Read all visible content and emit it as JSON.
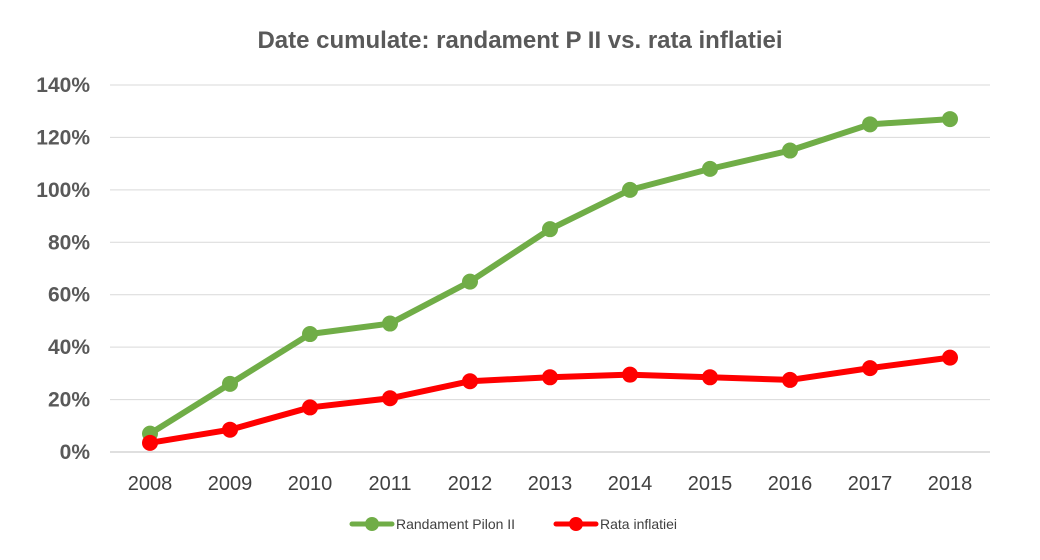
{
  "chart_data": {
    "type": "line",
    "title": "Date cumulate: randament P II vs. rata inflatiei",
    "xlabel": "",
    "ylabel": "",
    "categories": [
      "2008",
      "2009",
      "2010",
      "2011",
      "2012",
      "2013",
      "2014",
      "2015",
      "2016",
      "2017",
      "2018"
    ],
    "ylim": [
      0,
      140
    ],
    "yticks": [
      0,
      20,
      40,
      60,
      80,
      100,
      120,
      140
    ],
    "ytick_labels": [
      "0%",
      "20%",
      "40%",
      "60%",
      "80%",
      "100%",
      "120%",
      "140%"
    ],
    "grid": true,
    "legend_position": "bottom",
    "series": [
      {
        "name": "Randament Pilon II",
        "color": "#70ad47",
        "values": [
          7,
          26,
          45,
          49,
          65,
          85,
          100,
          108,
          115,
          125,
          127
        ]
      },
      {
        "name": "Rata inflatiei",
        "color": "#ff0000",
        "values": [
          3.5,
          8.5,
          17,
          20.5,
          27,
          28.5,
          29.5,
          28.5,
          27.5,
          32,
          36
        ]
      }
    ]
  }
}
